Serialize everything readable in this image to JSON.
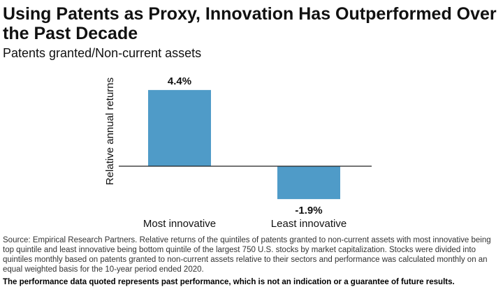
{
  "chart_data": {
    "type": "bar",
    "title": "Using Patents as Proxy, Innovation Has Outperformed Over the Past Decade",
    "subtitle": "Patents granted/Non-current assets",
    "xlabel": "",
    "ylabel": "Relative annual returns",
    "categories": [
      "Most innovative",
      "Least innovative"
    ],
    "values": [
      4.4,
      -1.9
    ],
    "data_labels": [
      "4.4%",
      "-1.9%"
    ],
    "unit": "%",
    "ylim": [
      -2.2,
      5.1
    ],
    "grid": false,
    "bar_color": "#4f9bc8"
  },
  "footer": {
    "source": "Source: Empirical Research Partners. Relative returns of the quintiles of patents granted to non-current assets with most innovative being top quintile and least innovative being bottom quintile of the largest 750 U.S. stocks by market capitalization. Stocks were divided into quintiles monthly based on patents granted to non-current assets relative to their sectors and performance was calculated monthly on an equal weighted basis for the 10-year period ended 2020.",
    "disclaimer": "The performance data quoted represents past performance, which is not an indication or a guarantee of future results."
  }
}
